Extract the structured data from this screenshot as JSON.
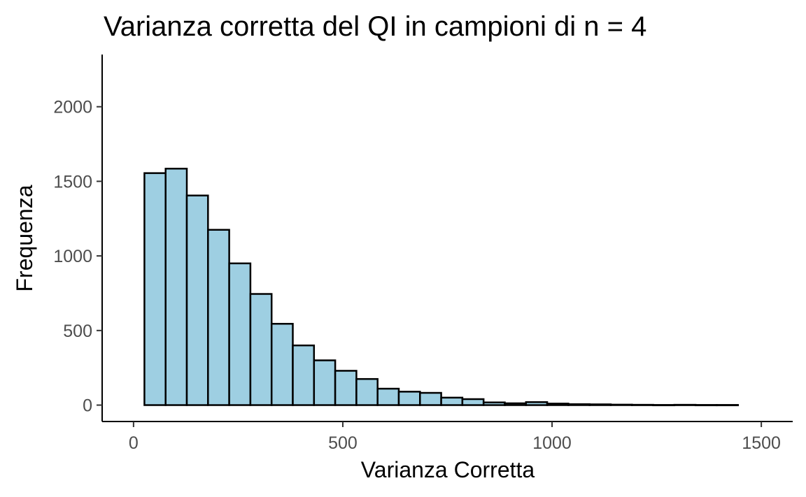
{
  "chart_data": {
    "type": "bar",
    "title": "Varianza corretta del QI in campioni di n = 4",
    "xlabel": "Varianza Corretta",
    "ylabel": "Frequenza",
    "xlim": [
      -75,
      1575
    ],
    "ylim": [
      -110,
      2350
    ],
    "x_ticks": [
      0,
      500,
      1000,
      1500
    ],
    "y_ticks": [
      0,
      500,
      1000,
      1500,
      2000
    ],
    "grid": false,
    "legend": "none",
    "bar_fill": "#9ecfe2",
    "bar_stroke": "#000000",
    "bin_width": 50.65,
    "bins": [
      {
        "start": 26,
        "count": 1555
      },
      {
        "start": 76.65,
        "count": 1585
      },
      {
        "start": 127.3,
        "count": 1405
      },
      {
        "start": 177.95,
        "count": 1175
      },
      {
        "start": 228.6,
        "count": 950
      },
      {
        "start": 279.25,
        "count": 745
      },
      {
        "start": 329.9,
        "count": 545
      },
      {
        "start": 380.55,
        "count": 400
      },
      {
        "start": 431.2,
        "count": 300
      },
      {
        "start": 481.85,
        "count": 230
      },
      {
        "start": 532.5,
        "count": 175
      },
      {
        "start": 583.15,
        "count": 110
      },
      {
        "start": 633.8,
        "count": 90
      },
      {
        "start": 684.45,
        "count": 82
      },
      {
        "start": 735.1,
        "count": 50
      },
      {
        "start": 785.75,
        "count": 40
      },
      {
        "start": 836.4,
        "count": 18
      },
      {
        "start": 887.05,
        "count": 12
      },
      {
        "start": 937.7,
        "count": 20
      },
      {
        "start": 988.35,
        "count": 10
      },
      {
        "start": 1039,
        "count": 6
      },
      {
        "start": 1089.65,
        "count": 5
      },
      {
        "start": 1140.3,
        "count": 3
      },
      {
        "start": 1190.95,
        "count": 2
      },
      {
        "start": 1241.6,
        "count": 1
      },
      {
        "start": 1292.25,
        "count": 2
      },
      {
        "start": 1342.9,
        "count": 1
      },
      {
        "start": 1393.55,
        "count": 1
      }
    ]
  }
}
